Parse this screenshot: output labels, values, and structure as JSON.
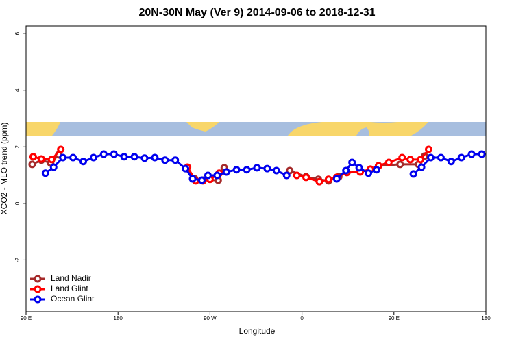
{
  "chart_data": {
    "type": "line",
    "title": "20N-30N May (Ver 9)   2014-09-06 to 2018-12-31",
    "x_label": "Longitude",
    "y_label": "XCO2 - MLO trend (ppm)",
    "xlim": [
      90,
      540
    ],
    "xticks": [
      {
        "value": 90,
        "label": "90 E"
      },
      180,
      {
        "value": 270,
        "label": "90 W"
      },
      {
        "value": 360,
        "label": "0"
      },
      {
        "value": 450,
        "label": "90 E"
      },
      {
        "value": 540,
        "label": "180"
      }
    ],
    "ylim": [
      -3.83,
      6.27
    ],
    "yticks": [
      -2,
      0,
      2,
      4,
      6
    ],
    "legend": "bottom-left",
    "series": [
      {
        "name": "Land Nadir",
        "color": "#a52a2a",
        "x": [
          96,
          105,
          114,
          122,
          null,
          247,
          255,
          263,
          278,
          284,
          null,
          348,
          364,
          376,
          386,
          396,
          null,
          435,
          456,
          474,
          480
        ],
        "values": [
          1.38,
          1.53,
          1.43,
          1.72,
          null,
          1.23,
          0.87,
          0.82,
          0.82,
          1.26,
          null,
          1.16,
          0.94,
          0.85,
          0.8,
          0.94,
          null,
          1.33,
          1.38,
          1.38,
          1.67
        ]
      },
      {
        "name": "Land Glint",
        "color": "#ff0000",
        "x": [
          97,
          105,
          115,
          124,
          null,
          248,
          256,
          263,
          270,
          279,
          null,
          355,
          364,
          377,
          386,
          394,
          404,
          417,
          427,
          435,
          445,
          458,
          466,
          476,
          484
        ],
        "values": [
          1.65,
          1.57,
          1.55,
          1.91,
          null,
          1.28,
          0.8,
          0.8,
          0.85,
          1.07,
          null,
          0.99,
          0.92,
          0.77,
          0.85,
          0.92,
          1.09,
          1.11,
          1.21,
          1.33,
          1.45,
          1.62,
          1.55,
          1.55,
          1.91
        ]
      },
      {
        "name": "Ocean Glint",
        "color": "#0000ee",
        "x": [
          109,
          117,
          126,
          136,
          146,
          156,
          166,
          176,
          186,
          196,
          206,
          216,
          226,
          236,
          246,
          253,
          262,
          268,
          277,
          286,
          296,
          306,
          316,
          326,
          335,
          345,
          null,
          394,
          403,
          409,
          416,
          425,
          433,
          null,
          469,
          477,
          486,
          496,
          506,
          516,
          526,
          536
        ],
        "values": [
          1.07,
          1.28,
          1.62,
          1.62,
          1.48,
          1.62,
          1.74,
          1.74,
          1.65,
          1.65,
          1.6,
          1.62,
          1.53,
          1.53,
          1.23,
          0.87,
          0.82,
          0.99,
          0.99,
          1.11,
          1.19,
          1.19,
          1.26,
          1.23,
          1.16,
          0.99,
          null,
          0.87,
          1.16,
          1.45,
          1.26,
          1.07,
          1.19,
          null,
          1.04,
          1.28,
          1.62,
          1.62,
          1.48,
          1.62,
          1.74,
          1.74
        ]
      }
    ]
  }
}
